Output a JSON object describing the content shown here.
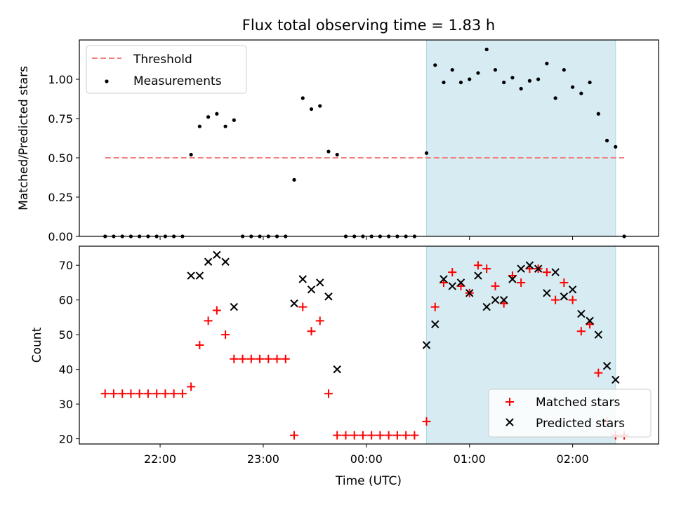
{
  "figure": {
    "title": "Flux total observing time = 1.83 h"
  },
  "colors": {
    "threshold": "#f08080",
    "measurements": "#000000",
    "matched": "#ff0000",
    "predicted": "#000000",
    "highlight": "#add8e6"
  },
  "chart_data": [
    {
      "type": "scatter",
      "panel": "top",
      "ylabel": "Matched/Predicted stars",
      "ylim": [
        0,
        1.25
      ],
      "yticks": [
        "0.00",
        "0.25",
        "0.50",
        "0.75",
        "1.00"
      ],
      "xlim": [
        "21:13",
        "02:50"
      ],
      "xticks": [
        "22:00",
        "23:00",
        "00:00",
        "01:00",
        "02:00"
      ],
      "legend": {
        "placement": "upper left",
        "entries": [
          "Threshold",
          "Measurements"
        ]
      },
      "highlight_span": {
        "x": [
          "00:35",
          "02:25"
        ]
      },
      "threshold": {
        "name": "Threshold",
        "x": [
          "21:28",
          "02:30"
        ],
        "y": 0.5
      },
      "series": [
        {
          "name": "Measurements",
          "x": [
            "21:28",
            "21:33",
            "21:38",
            "21:43",
            "21:48",
            "21:53",
            "21:58",
            "22:03",
            "22:08",
            "22:13",
            "22:18",
            "22:23",
            "22:28",
            "22:33",
            "22:38",
            "22:43",
            "22:48",
            "22:53",
            "22:58",
            "23:03",
            "23:08",
            "23:13",
            "23:18",
            "23:23",
            "23:28",
            "23:33",
            "23:38",
            "23:43",
            "23:48",
            "23:53",
            "23:58",
            "00:03",
            "00:08",
            "00:13",
            "00:18",
            "00:23",
            "00:28",
            "00:35",
            "00:40",
            "00:45",
            "00:50",
            "00:55",
            "01:00",
            "01:05",
            "01:10",
            "01:15",
            "01:20",
            "01:25",
            "01:30",
            "01:35",
            "01:40",
            "01:45",
            "01:50",
            "01:55",
            "02:00",
            "02:05",
            "02:10",
            "02:15",
            "02:20",
            "02:25",
            "02:30"
          ],
          "y": [
            0,
            0,
            0,
            0,
            0,
            0,
            0,
            0,
            0,
            0,
            0.52,
            0.7,
            0.76,
            0.78,
            0.7,
            0.74,
            0,
            0,
            0,
            0,
            0,
            0,
            0.36,
            0.88,
            0.81,
            0.83,
            0.54,
            0.52,
            0,
            0,
            0,
            0,
            0,
            0,
            0,
            0,
            0,
            0.53,
            1.09,
            0.98,
            1.06,
            0.98,
            1.0,
            1.04,
            1.19,
            1.06,
            0.98,
            1.01,
            0.94,
            0.99,
            1.0,
            1.1,
            0.88,
            1.06,
            0.95,
            0.91,
            0.98,
            0.78,
            0.61,
            0.57,
            0
          ]
        }
      ]
    },
    {
      "type": "scatter",
      "panel": "bottom",
      "xlabel": "Time (UTC)",
      "ylabel": "Count",
      "ylim": [
        18.5,
        75.5
      ],
      "yticks": [
        "20",
        "30",
        "40",
        "50",
        "60",
        "70"
      ],
      "xlim": [
        "21:13",
        "02:50"
      ],
      "xticks": [
        "22:00",
        "23:00",
        "00:00",
        "01:00",
        "02:00"
      ],
      "legend": {
        "placement": "lower right",
        "entries": [
          "Matched stars",
          "Predicted stars"
        ]
      },
      "highlight_span": {
        "x": [
          "00:35",
          "02:25"
        ]
      },
      "series": [
        {
          "name": "Matched stars",
          "marker": "+",
          "x": [
            "21:28",
            "21:33",
            "21:38",
            "21:43",
            "21:48",
            "21:53",
            "21:58",
            "22:03",
            "22:08",
            "22:13",
            "22:18",
            "22:23",
            "22:28",
            "22:33",
            "22:38",
            "22:43",
            "22:48",
            "22:53",
            "22:58",
            "23:03",
            "23:08",
            "23:13",
            "23:18",
            "23:23",
            "23:28",
            "23:33",
            "23:38",
            "23:43",
            "23:48",
            "23:53",
            "23:58",
            "00:03",
            "00:08",
            "00:13",
            "00:18",
            "00:23",
            "00:28",
            "00:35",
            "00:40",
            "00:45",
            "00:50",
            "00:55",
            "01:00",
            "01:05",
            "01:10",
            "01:15",
            "01:20",
            "01:25",
            "01:30",
            "01:35",
            "01:40",
            "01:45",
            "01:50",
            "01:55",
            "02:00",
            "02:05",
            "02:10",
            "02:15",
            "02:20",
            "02:25",
            "02:30"
          ],
          "y": [
            33,
            33,
            33,
            33,
            33,
            33,
            33,
            33,
            33,
            33,
            35,
            47,
            54,
            57,
            50,
            43,
            43,
            43,
            43,
            43,
            43,
            43,
            21,
            58,
            51,
            54,
            33,
            21,
            21,
            21,
            21,
            21,
            21,
            21,
            21,
            21,
            21,
            25,
            58,
            65,
            68,
            64,
            62,
            70,
            69,
            64,
            59,
            67,
            65,
            69,
            69,
            68,
            60,
            65,
            60,
            51,
            53,
            39,
            25,
            21,
            21
          ]
        },
        {
          "name": "Predicted stars",
          "marker": "x",
          "x": [
            "22:18",
            "22:23",
            "22:28",
            "22:33",
            "22:38",
            "22:43",
            "23:18",
            "23:23",
            "23:28",
            "23:33",
            "23:38",
            "23:43",
            "00:35",
            "00:40",
            "00:45",
            "00:50",
            "00:55",
            "01:00",
            "01:05",
            "01:10",
            "01:15",
            "01:20",
            "01:25",
            "01:30",
            "01:35",
            "01:40",
            "01:45",
            "01:50",
            "01:55",
            "02:00",
            "02:05",
            "02:10",
            "02:15",
            "02:20",
            "02:25"
          ],
          "y": [
            67,
            67,
            71,
            73,
            71,
            58,
            59,
            66,
            63,
            65,
            61,
            40,
            47,
            53,
            66,
            64,
            65,
            62,
            67,
            58,
            60,
            60,
            66,
            69,
            70,
            69,
            62,
            68,
            61,
            63,
            56,
            54,
            50,
            41,
            37
          ]
        }
      ]
    }
  ]
}
